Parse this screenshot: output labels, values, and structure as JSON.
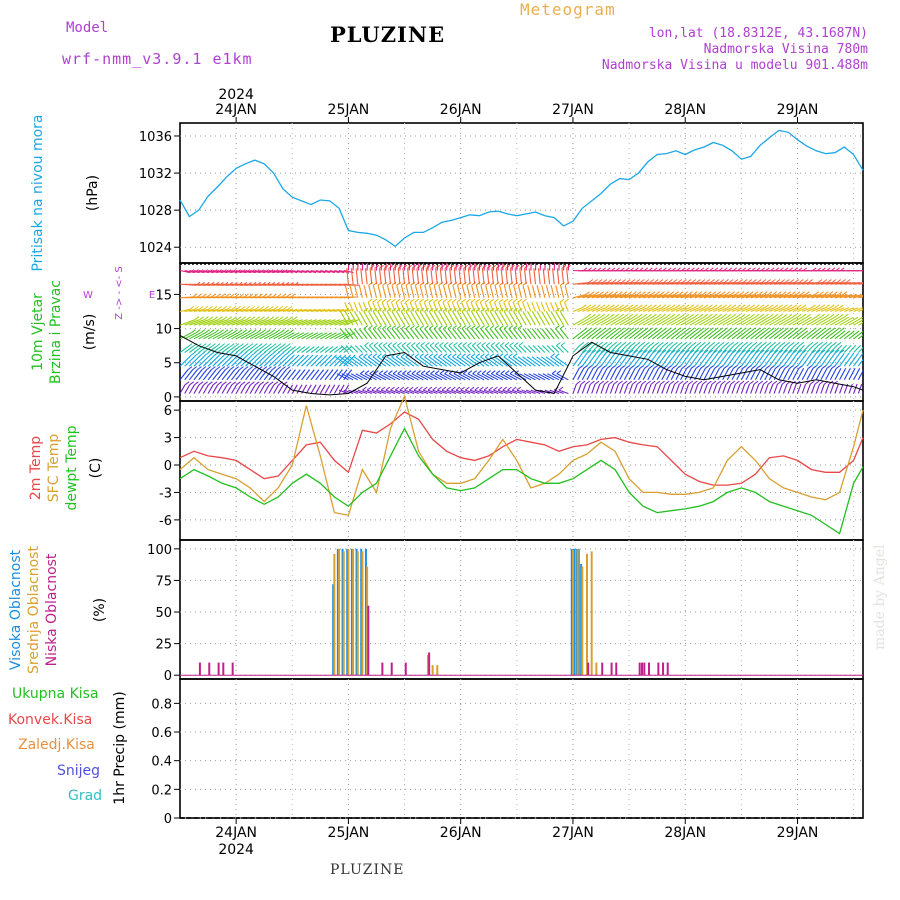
{
  "header": {
    "model_label": "Model",
    "model_name": "wrf-nmm_v3.9.1 e1km",
    "station": "PLUZINE",
    "title": "Meteogram",
    "coords": "lon,lat (18.8312E, 43.1687N)",
    "elevation": "Nadmorska Visina 780m",
    "model_elevation": "Nadmorska Visina u modelu 901.488m"
  },
  "footer_station": "PLUZINE",
  "credit": "made by Angel",
  "colors": {
    "pressure": "#1aa7e8",
    "t2m": "#e84848",
    "sfc": "#d8a030",
    "dewpt": "#22c020",
    "high_cloud": "#1a8ee0",
    "mid_cloud": "#d8a030",
    "low_cloud": "#c0208a"
  },
  "chart_data": [
    {
      "type": "line",
      "name": "pressure",
      "ylabel": [
        "Pritisak na nivou mora",
        "(hPa)"
      ],
      "year": "2024",
      "top_dates": [
        "24JAN",
        "25JAN",
        "26JAN",
        "27JAN",
        "28JAN",
        "29JAN"
      ],
      "yticks": [
        "1036",
        "1032",
        "1028",
        "1024"
      ],
      "ylim": [
        1022.3,
        1037.4
      ],
      "x_hours": [
        0,
        2,
        4,
        6,
        8,
        10,
        12,
        14,
        16,
        18,
        20,
        22,
        24,
        26,
        28,
        30,
        32,
        34,
        36,
        38,
        40,
        42,
        44,
        46,
        48,
        50,
        52,
        54,
        56,
        58,
        60,
        62,
        64,
        66,
        68,
        70,
        72,
        74,
        76,
        78,
        80,
        82,
        84,
        86,
        88,
        90,
        92,
        94,
        96,
        98,
        100,
        102,
        104,
        106,
        108,
        110,
        112,
        114,
        116,
        118,
        120,
        122,
        124,
        126,
        128,
        130,
        132,
        134,
        136,
        138,
        140,
        142,
        144,
        146
      ],
      "series": [
        {
          "values": [
            1029.1,
            1027.3,
            1028.0,
            1029.5,
            1030.5,
            1031.6,
            1032.5,
            1033.0,
            1033.4,
            1033.0,
            1032.0,
            1030.3,
            1029.4,
            1029.0,
            1028.6,
            1029.1,
            1029.0,
            1028.2,
            1025.8,
            1025.6,
            1025.5,
            1025.3,
            1024.8,
            1024.1,
            1025.0,
            1025.6,
            1025.6,
            1026.1,
            1026.7,
            1026.9,
            1027.2,
            1027.5,
            1027.4,
            1027.8,
            1027.9,
            1027.6,
            1027.4,
            1027.6,
            1027.8,
            1027.4,
            1027.2,
            1026.3,
            1026.8,
            1028.2,
            1029.0,
            1029.8,
            1030.8,
            1031.4,
            1031.3,
            1032.0,
            1033.2,
            1034.0,
            1034.1,
            1034.4,
            1034.0,
            1034.5,
            1034.8,
            1035.3,
            1035.0,
            1034.4,
            1033.5,
            1033.8,
            1035.0,
            1035.8,
            1036.6,
            1036.4,
            1035.6,
            1034.9,
            1034.4,
            1034.1,
            1034.2,
            1034.8,
            1034.0,
            1032.3
          ]
        }
      ]
    },
    {
      "type": "line",
      "name": "wind",
      "ylabel": [
        "10m Vjetar",
        "Brzina i Pravac",
        "(m/s)"
      ],
      "legend_glyphs": [
        "Z",
        "->",
        "-",
        "<-",
        "S",
        "W",
        "E"
      ],
      "yticks": [
        "15",
        "10",
        "5",
        "0"
      ],
      "ylim": [
        -0.6,
        19.6
      ],
      "x_hours": [
        0,
        4,
        8,
        12,
        16,
        20,
        24,
        28,
        32,
        36,
        40,
        44,
        48,
        52,
        56,
        60,
        64,
        68,
        72,
        76,
        80,
        84,
        88,
        92,
        96,
        100,
        104,
        108,
        112,
        116,
        120,
        124,
        128,
        132,
        136,
        140,
        144,
        146
      ],
      "series": [
        {
          "values": [
            9.0,
            7.5,
            6.5,
            6.0,
            4.5,
            3.0,
            1.0,
            0.5,
            0.3,
            0.5,
            2.0,
            6.0,
            6.5,
            4.5,
            4.0,
            3.5,
            5.0,
            6.0,
            3.5,
            1.0,
            0.5,
            6.0,
            8.0,
            6.5,
            6.0,
            5.5,
            4.0,
            3.0,
            2.5,
            3.0,
            3.5,
            4.0,
            2.5,
            2.0,
            2.5,
            2.0,
            1.5,
            1.0
          ]
        }
      ]
    },
    {
      "type": "line",
      "name": "temperature",
      "ylabel": [
        "2m Temp",
        "SFC Temp",
        "dewpt Temp",
        "(C)"
      ],
      "yticks": [
        "6",
        "3",
        "0",
        "-3",
        "-6"
      ],
      "ylim": [
        -8.2,
        7.0
      ],
      "x_hours": [
        0,
        3,
        6,
        9,
        12,
        15,
        18,
        21,
        24,
        27,
        30,
        33,
        36,
        39,
        42,
        45,
        48,
        51,
        54,
        57,
        60,
        63,
        66,
        69,
        72,
        75,
        78,
        81,
        84,
        87,
        90,
        93,
        96,
        99,
        102,
        105,
        108,
        111,
        114,
        117,
        120,
        123,
        126,
        129,
        132,
        135,
        138,
        141,
        144,
        146
      ],
      "series": [
        {
          "name": "2m Temp",
          "values": [
            0.8,
            1.5,
            1.0,
            0.8,
            0.5,
            -0.5,
            -1.5,
            -1.2,
            0.5,
            2.2,
            2.5,
            0.5,
            -0.8,
            3.8,
            3.5,
            4.5,
            5.8,
            5.0,
            2.8,
            1.5,
            0.8,
            0.5,
            1.0,
            2.0,
            2.8,
            2.5,
            2.2,
            1.5,
            2.0,
            2.2,
            2.8,
            3.0,
            2.5,
            2.2,
            2.0,
            0.5,
            -1.0,
            -1.8,
            -2.2,
            -2.2,
            -2.0,
            -1.0,
            0.8,
            1.0,
            0.5,
            -0.5,
            -0.8,
            -0.8,
            0.5,
            3.0
          ]
        },
        {
          "name": "SFC Temp",
          "values": [
            -0.5,
            0.8,
            -0.5,
            -1.0,
            -1.5,
            -2.5,
            -4.0,
            -2.5,
            0.0,
            6.5,
            1.0,
            -5.2,
            -5.5,
            -0.5,
            -3.0,
            4.0,
            7.5,
            1.5,
            -1.0,
            -2.0,
            -2.0,
            -1.5,
            0.5,
            2.8,
            0.5,
            -2.5,
            -2.0,
            -1.0,
            0.5,
            1.2,
            2.5,
            1.5,
            -1.5,
            -3.0,
            -3.0,
            -3.2,
            -3.2,
            -3.0,
            -2.5,
            0.5,
            2.0,
            0.5,
            -1.5,
            -2.5,
            -3.0,
            -3.5,
            -3.8,
            -3.0,
            2.0,
            6.0
          ]
        },
        {
          "name": "dewpt Temp",
          "values": [
            -1.5,
            -0.5,
            -1.2,
            -2.0,
            -2.5,
            -3.5,
            -4.3,
            -3.5,
            -2.0,
            -1.0,
            -2.0,
            -3.5,
            -4.5,
            -3.0,
            -2.0,
            1.0,
            4.0,
            1.0,
            -1.0,
            -2.5,
            -2.8,
            -2.5,
            -1.5,
            -0.5,
            -0.5,
            -1.5,
            -2.0,
            -2.0,
            -1.5,
            -0.5,
            0.5,
            -0.5,
            -3.0,
            -4.5,
            -5.2,
            -5.0,
            -4.8,
            -4.5,
            -4.0,
            -3.0,
            -2.5,
            -3.0,
            -4.0,
            -4.5,
            -5.0,
            -5.5,
            -6.5,
            -7.5,
            -2.0,
            -0.2
          ]
        }
      ]
    },
    {
      "type": "bar",
      "name": "clouds",
      "ylabel": [
        "Visoka Oblacnost",
        "Srednja Oblacnost",
        "Niska Oblacnost",
        "(%)"
      ],
      "yticks": [
        "100",
        "75",
        "50",
        "25",
        "0"
      ],
      "ylim": [
        -3,
        107
      ],
      "series": [
        {
          "name": "Visoka Oblacnost",
          "points": [
            [
              33,
              72
            ],
            [
              34,
              100
            ],
            [
              35,
              100
            ],
            [
              36,
              100
            ],
            [
              37,
              100
            ],
            [
              38,
              100
            ],
            [
              39,
              100
            ],
            [
              40,
              100
            ],
            [
              84,
              100
            ],
            [
              84.5,
              100
            ],
            [
              85,
              100
            ],
            [
              85.5,
              100
            ],
            [
              86,
              88
            ],
            [
              87,
              0
            ],
            [
              88,
              0
            ]
          ]
        },
        {
          "name": "Srednja Oblacnost",
          "points": [
            [
              33,
              96
            ],
            [
              34,
              100
            ],
            [
              35,
              98
            ],
            [
              36,
              100
            ],
            [
              37,
              100
            ],
            [
              38,
              98
            ],
            [
              39,
              98
            ],
            [
              40,
              86
            ],
            [
              53,
              16
            ],
            [
              54,
              8
            ],
            [
              55,
              8
            ],
            [
              84,
              99
            ],
            [
              85,
              100
            ],
            [
              86,
              86
            ],
            [
              87,
              96
            ],
            [
              88,
              98
            ],
            [
              89,
              10
            ]
          ]
        },
        {
          "name": "Niska Oblacnost",
          "points": [
            [
              4,
              10
            ],
            [
              6,
              10
            ],
            [
              8,
              10
            ],
            [
              9,
              10
            ],
            [
              11,
              10
            ],
            [
              40,
              55
            ],
            [
              43,
              10
            ],
            [
              45,
              10
            ],
            [
              48,
              10
            ],
            [
              53,
              18
            ],
            [
              87,
              10
            ],
            [
              90,
              10
            ],
            [
              92,
              10
            ],
            [
              93,
              10
            ],
            [
              98,
              10
            ],
            [
              98.5,
              10
            ],
            [
              99,
              10
            ],
            [
              100,
              10
            ],
            [
              102,
              10
            ],
            [
              103,
              10
            ],
            [
              104,
              10
            ]
          ]
        }
      ]
    },
    {
      "type": "bar",
      "name": "precipitation",
      "ylabel": [
        "1hr Precip (mm)"
      ],
      "legend": [
        "Ukupna Kisa",
        "Konvek.Kisa",
        "Zaledj.Kisa",
        "Snijeg",
        "Grad"
      ],
      "legend_colors": [
        "#22c020",
        "#e84848",
        "#e89040",
        "#5050e0",
        "#30c0c0"
      ],
      "yticks": [
        "0.8",
        "0.6",
        "0.4",
        "0.2",
        "0"
      ],
      "ylim": [
        0,
        0.97
      ],
      "bottom_dates": [
        "24JAN",
        "25JAN",
        "26JAN",
        "27JAN",
        "28JAN",
        "29JAN"
      ],
      "year": "2024",
      "series": []
    }
  ]
}
